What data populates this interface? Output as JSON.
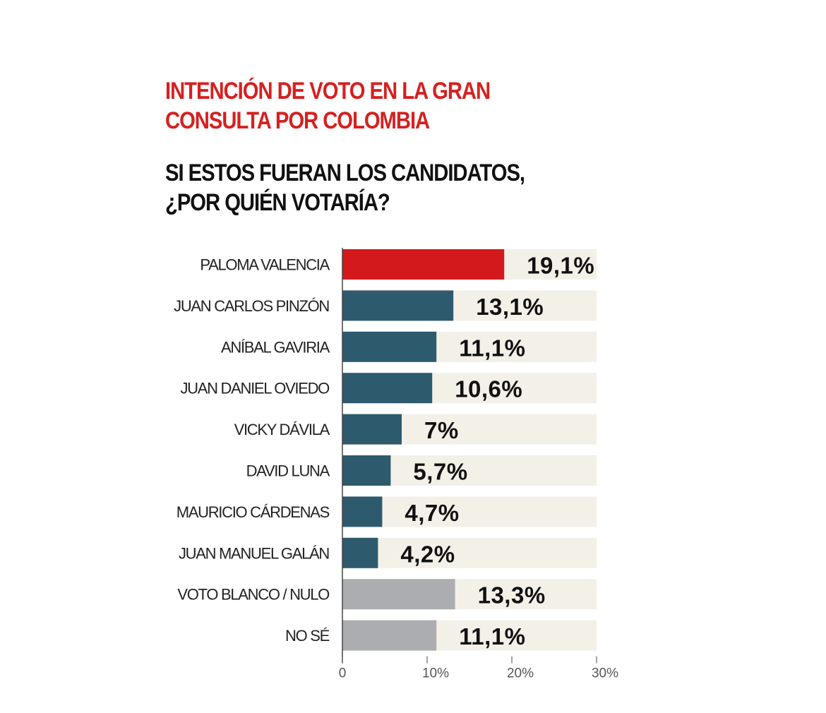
{
  "chart_data": {
    "type": "bar",
    "orientation": "horizontal",
    "title": [
      "INTENCIÓN DE VOTO EN LA GRAN",
      "CONSULTA POR COLOMBIA"
    ],
    "subtitle": [
      "SI ESTOS FUERAN LOS CANDIDATOS,",
      "¿POR QUIÉN VOTARÍA?"
    ],
    "categories": [
      "PALOMA VALENCIA",
      "JUAN CARLOS PINZÓN",
      "ANÍBAL GAVIRIA",
      "JUAN DANIEL OVIEDO",
      "VICKY DÁVILA",
      "DAVID LUNA",
      "MAURICIO CÁRDENAS",
      "JUAN MANUEL GALÁN",
      "VOTO BLANCO / NULO",
      "NO SÉ"
    ],
    "values": [
      19.1,
      13.1,
      11.1,
      10.6,
      7,
      5.7,
      4.7,
      4.2,
      13.3,
      11.1
    ],
    "value_labels": [
      "19,1%",
      "13,1%",
      "11,1%",
      "10,6%",
      "7%",
      "5,7%",
      "4,7%",
      "4,2%",
      "13,3%",
      "11,1%"
    ],
    "bar_colors": [
      "#d4191c",
      "#2e5a6e",
      "#2e5a6e",
      "#2e5a6e",
      "#2e5a6e",
      "#2e5a6e",
      "#2e5a6e",
      "#2e5a6e",
      "#acadb0",
      "#acadb0"
    ],
    "track_color": "#f3f0e8",
    "xlim": [
      0,
      30
    ],
    "xticks": [
      0,
      10,
      20,
      30
    ],
    "xtick_labels": [
      "0",
      "10%",
      "20%",
      "30%"
    ],
    "xlabel": "",
    "ylabel": "",
    "grid": false
  }
}
